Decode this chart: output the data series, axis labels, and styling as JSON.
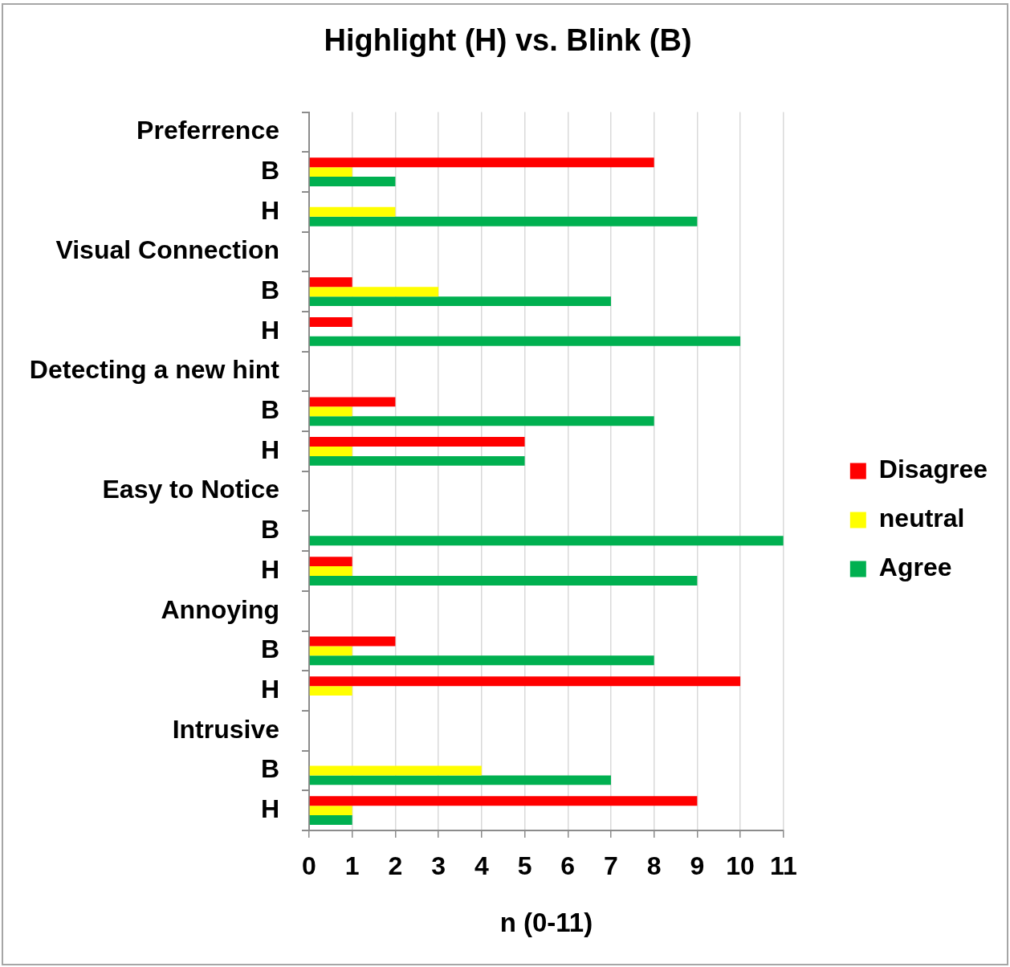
{
  "chart_data": {
    "type": "bar",
    "orientation": "horizontal",
    "title": "Highlight (H) vs. Blink (B)",
    "xlabel": "n (0-11)",
    "categories": [
      "Preferrence",
      "B",
      "H",
      "Visual Connection",
      "B",
      "H",
      "Detecting a new hint",
      "B",
      "H",
      "Easy to Notice",
      "B",
      "H",
      "Annoying",
      "B",
      "H",
      "Intrusive",
      "B",
      "H"
    ],
    "series": [
      {
        "name": "Disagree",
        "color": "#ff0000",
        "values": [
          null,
          8,
          0,
          null,
          1,
          1,
          null,
          2,
          5,
          null,
          0,
          1,
          null,
          2,
          10,
          null,
          0,
          9
        ]
      },
      {
        "name": "neutral",
        "color": "#ffff00",
        "values": [
          null,
          1,
          2,
          null,
          3,
          0,
          null,
          1,
          1,
          null,
          0,
          1,
          null,
          1,
          1,
          null,
          4,
          1
        ]
      },
      {
        "name": "Agree",
        "color": "#00b050",
        "values": [
          null,
          2,
          9,
          null,
          7,
          10,
          null,
          8,
          5,
          null,
          11,
          9,
          null,
          8,
          0,
          null,
          7,
          1
        ]
      }
    ],
    "xlim": [
      0,
      11
    ],
    "xticks": [
      0,
      1,
      2,
      3,
      4,
      5,
      6,
      7,
      8,
      9,
      10,
      11
    ],
    "grid": "x",
    "legend": "right"
  }
}
